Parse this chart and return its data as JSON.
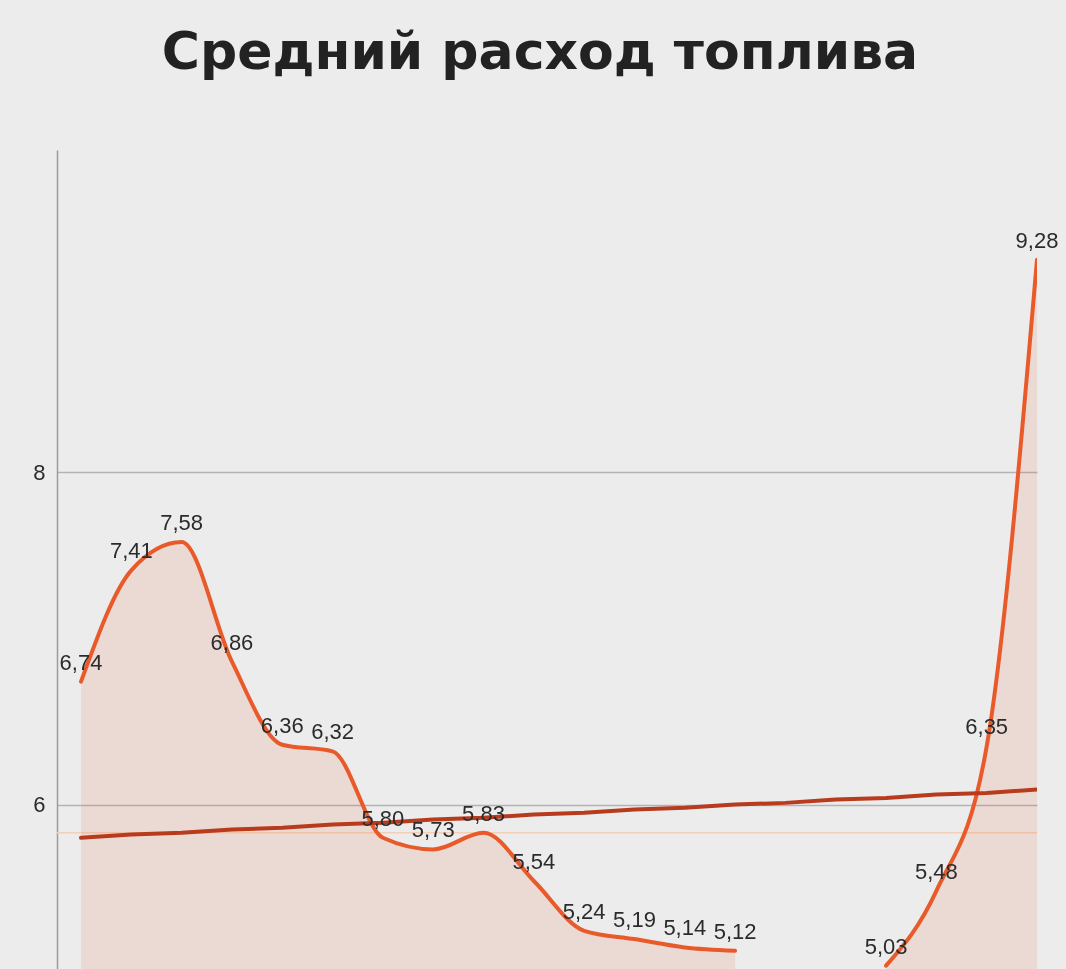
{
  "chart_data": {
    "type": "area",
    "title": "Средний расход топлива",
    "categories": [
      null,
      null,
      null,
      null,
      null,
      null,
      null,
      null,
      null,
      null,
      null,
      null,
      null,
      null,
      null,
      null,
      null,
      null,
      null,
      null
    ],
    "series": [
      {
        "color": "#e95a2b",
        "values": [
          6.74,
          7.41,
          7.58,
          6.86,
          6.36,
          6.32,
          5.8,
          5.73,
          5.83,
          5.54,
          5.24,
          5.19,
          5.14,
          5.12,
          null,
          null,
          5.03,
          5.48,
          6.35,
          9.28
        ],
        "value_labels": [
          "6,74",
          "7,41",
          "7,58",
          "6,86",
          "6,36",
          "6,32",
          "5,80",
          "5,73",
          "5,83",
          "5,54",
          "5,24",
          "5,19",
          "5,14",
          "5,12",
          null,
          null,
          "5,03",
          "5,48",
          "6,35",
          "9,28"
        ]
      },
      {
        "type": "line",
        "color": "#b83b1d",
        "values": [
          5.8,
          5.82,
          5.83,
          5.85,
          5.86,
          5.88,
          5.89,
          5.91,
          5.92,
          5.94,
          5.95,
          5.97,
          5.98,
          6.0,
          6.01,
          6.03,
          6.04,
          6.06,
          6.07,
          6.09
        ]
      }
    ],
    "ylim": [
      5.01,
      9.94
    ],
    "yticks": [
      6,
      8
    ],
    "grid": "y",
    "tick_labels": "y",
    "ref_lines": [
      {
        "axis": "y",
        "value": 5.83,
        "color": "#f3cfb6"
      }
    ]
  }
}
